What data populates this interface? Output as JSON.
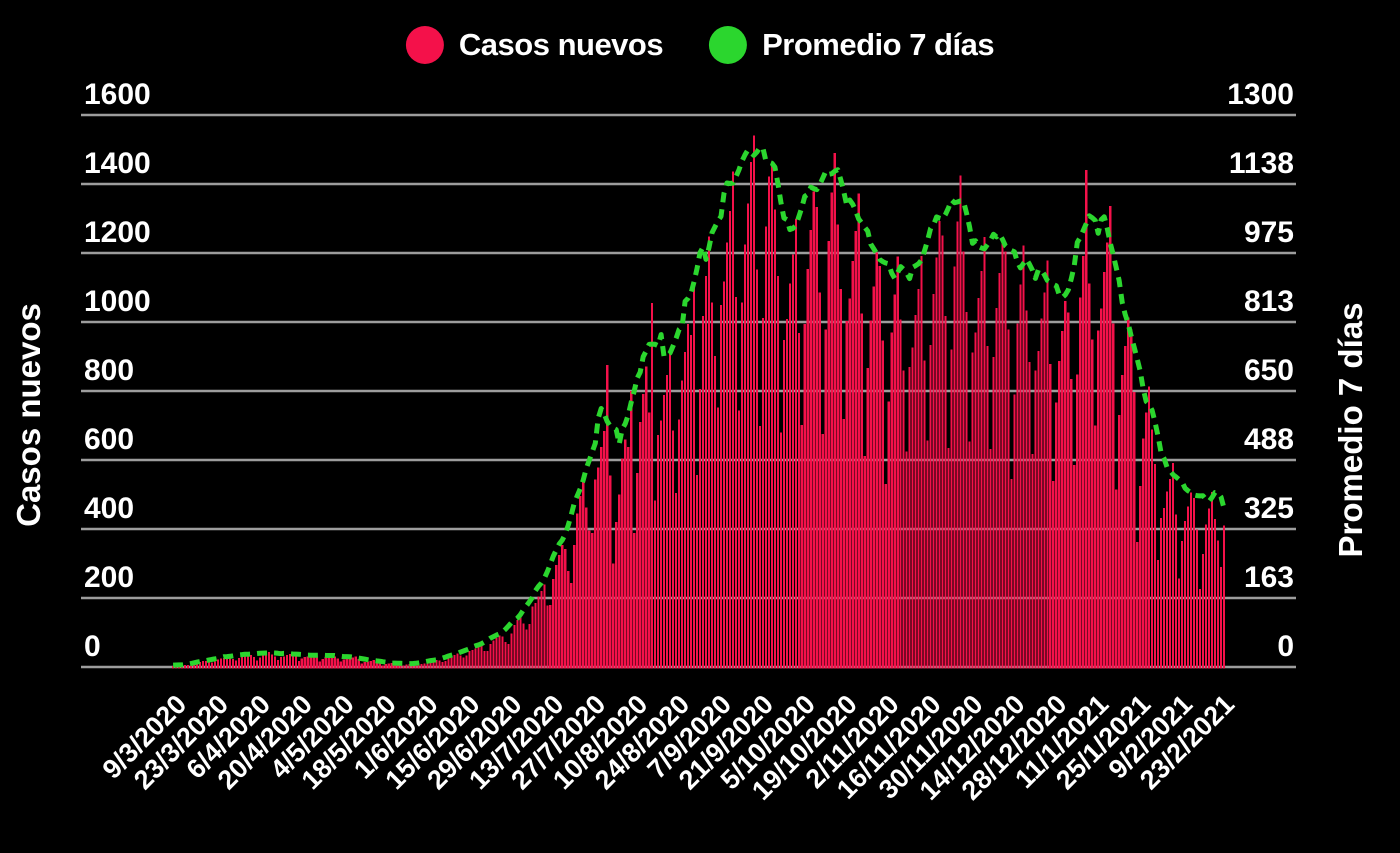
{
  "legend": {
    "items": [
      {
        "label": "Casos nuevos",
        "color": "#f4114a",
        "marker": "circle"
      },
      {
        "label": "Promedio 7 días",
        "color": "#2bd62e",
        "marker": "circle"
      }
    ]
  },
  "colors": {
    "background": "#000000",
    "bar": "#f4114a",
    "line": "#2bd62e",
    "grid": "#9d9d9d",
    "text": "#ffffff"
  },
  "chart_data": {
    "type": "bar",
    "title": "",
    "xlabel": "",
    "left_axis": {
      "title": "Casos nuevos",
      "range": [
        0,
        1600
      ],
      "tick_labels": [
        "0",
        "200",
        "400",
        "600",
        "800",
        "1000",
        "1200",
        "1400",
        "1600"
      ]
    },
    "right_axis": {
      "title": "Promedio 7 días",
      "range": [
        0,
        1300
      ],
      "tick_labels": [
        "0",
        "163",
        "325",
        "488",
        "650",
        "813",
        "975",
        "1138",
        "1300"
      ]
    },
    "x_tick_labels": [
      "9/3/2020",
      "23/3/2020",
      "6/4/2020",
      "20/4/2020",
      "4/5/2020",
      "18/5/2020",
      "1/6/2020",
      "15/6/2020",
      "29/6/2020",
      "13/7/2020",
      "27/7/2020",
      "10/8/2020",
      "24/8/2020",
      "7/9/2020",
      "21/9/2020",
      "5/10/2020",
      "19/10/2020",
      "2/11/2020",
      "16/11/2020",
      "30/11/2020",
      "14/12/2020",
      "28/12/2020",
      "11/1/2021",
      "25/1/2021",
      "9/2/2021",
      "23/2/2021"
    ],
    "x_tick_every_n_bars": 14,
    "grid": true,
    "legend_position": "top-center",
    "series": [
      {
        "name": "Casos nuevos",
        "kind": "bar",
        "axis": "left",
        "start_date": "9/3/2020",
        "values": [
          3,
          4,
          5,
          6,
          6,
          6,
          5,
          8,
          12,
          15,
          17,
          18,
          15,
          13,
          16,
          22,
          24,
          26,
          28,
          30,
          23,
          19,
          26,
          31,
          34,
          37,
          35,
          29,
          19,
          28,
          35,
          39,
          43,
          36,
          31,
          21,
          29,
          31,
          35,
          37,
          40,
          30,
          17,
          25,
          29,
          31,
          34,
          33,
          27,
          16,
          23,
          29,
          32,
          35,
          30,
          25,
          16,
          22,
          24,
          26,
          28,
          30,
          23,
          10,
          14,
          16,
          18,
          20,
          19,
          15,
          5,
          8,
          10,
          11,
          12,
          10,
          8,
          5,
          7,
          8,
          9,
          9,
          10,
          8,
          10,
          14,
          16,
          18,
          20,
          19,
          15,
          17,
          25,
          32,
          35,
          39,
          33,
          28,
          33,
          46,
          49,
          54,
          58,
          63,
          47,
          47,
          66,
          77,
          84,
          92,
          88,
          72,
          67,
          97,
          122,
          136,
          150,
          126,
          108,
          125,
          175,
          186,
          205,
          220,
          239,
          179,
          180,
          255,
          296,
          325,
          354,
          342,
          278,
          244,
          353,
          445,
          496,
          546,
          462,
          395,
          389,
          543,
          578,
          637,
          684,
          875,
          555,
          300,
          420,
          500,
          605,
          659,
          637,
          800,
          389,
          563,
          710,
          791,
          871,
          737,
          1055,
          482,
          672,
          715,
          788,
          847,
          920,
          686,
          505,
          717,
          831,
          913,
          994,
          962,
          1105,
          557,
          806,
          1018,
          1133,
          1248,
          1056,
          902,
          752,
          1049,
          1117,
          1231,
          1322,
          1436,
          1072,
          744,
          1056,
          1224,
          1344,
          1464,
          1540,
          1152,
          699,
          1012,
          1277,
          1422,
          1455,
          1326,
          1133,
          680,
          948,
          1009,
          1112,
          1195,
          1298,
          968,
          701,
          994,
          1153,
          1266,
          1379,
          1333,
          1085,
          676,
          979,
          1235,
          1375,
          1490,
          1282,
          1095,
          719,
          1003,
          1068,
          1177,
          1264,
          1373,
          1025,
          611,
          867,
          1005,
          1103,
          1202,
          1162,
          946,
          531,
          769,
          970,
          1080,
          1190,
          1007,
          860,
          624,
          869,
          926,
          1021,
          1096,
          1191,
          888,
          657,
          933,
          1081,
          1187,
          1293,
          1251,
          1018,
          635,
          920,
          1161,
          1292,
          1424,
          1205,
          1029,
          653,
          911,
          970,
          1069,
          1148,
          1247,
          931,
          632,
          898,
          1040,
          1142,
          1244,
          1204,
          979,
          545,
          790,
          996,
          1109,
          1222,
          1034,
          884,
          617,
          860,
          916,
          1010,
          1085,
          1178,
          879,
          539,
          766,
          887,
          974,
          1061,
          1027,
          835,
          586,
          848,
          1071,
          1192,
          1440,
          1111,
          949,
          700,
          975,
          1039,
          1145,
          1230,
          1336,
          996,
          515,
          730,
          847,
          930,
          1013,
          979,
          797,
          363,
          525,
          663,
          738,
          813,
          688,
          588,
          310,
          432,
          461,
          508,
          545,
          592,
          442,
          257,
          365,
          423,
          465,
          506,
          490,
          398,
          226,
          328,
          413,
          460,
          507,
          429,
          367,
          290,
          410
        ]
      },
      {
        "name": "Promedio 7 días",
        "kind": "dashed-line",
        "axis": "right",
        "derivation": "7-day centered rolling mean of Casos nuevos values"
      }
    ]
  }
}
